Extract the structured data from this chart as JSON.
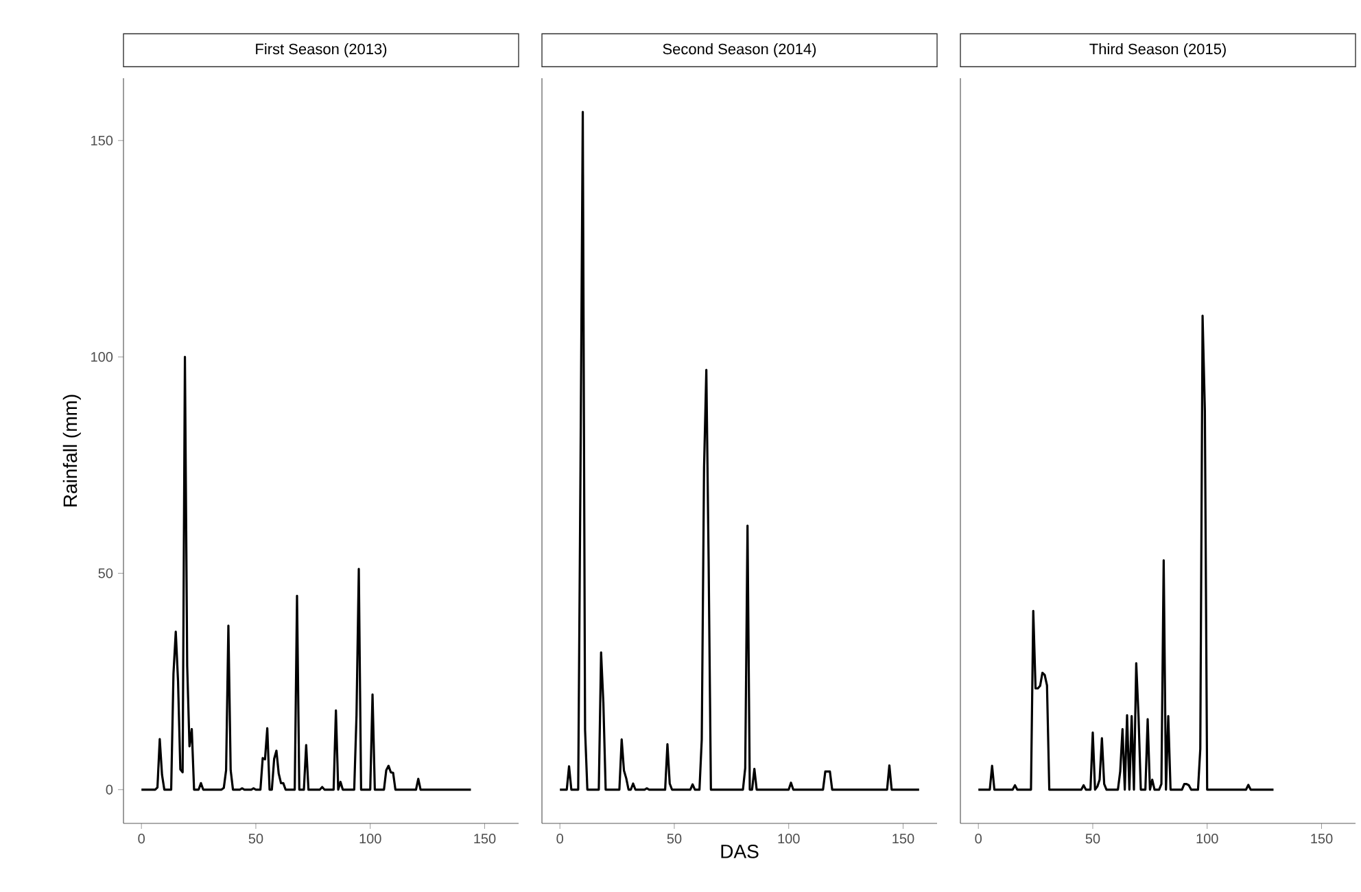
{
  "chart_data": [
    {
      "type": "line",
      "title": "First Season (2013)",
      "ylabel": "Rainfall (mm)",
      "color": "#000000",
      "xlim": [
        -7.85,
        164.85
      ],
      "ylim": [
        -7.8,
        164.4
      ],
      "xticks": [
        0,
        50,
        100,
        150
      ],
      "yticks": [
        0,
        50,
        100,
        150
      ],
      "x": [
        0,
        6,
        7,
        8,
        9,
        10,
        13,
        14,
        15,
        16,
        17,
        18,
        19,
        20,
        21,
        22,
        23,
        25,
        26,
        27,
        35,
        36,
        37,
        38,
        39,
        40,
        43,
        44,
        45,
        48,
        49,
        50,
        52,
        53,
        54,
        55,
        56,
        57,
        58,
        59,
        60,
        61,
        62,
        63,
        67,
        68,
        69,
        71,
        72,
        73,
        78,
        79,
        80,
        84,
        85,
        86,
        87,
        88,
        93,
        94,
        95,
        96,
        100,
        101,
        102,
        106,
        107,
        108,
        109,
        110,
        111,
        120,
        121,
        122,
        144
      ],
      "values": [
        0,
        0,
        0.5,
        11.7,
        3.4,
        0,
        0,
        26.8,
        36.5,
        25,
        4.7,
        4,
        100,
        28.6,
        10,
        14,
        0,
        0,
        1.5,
        0,
        0,
        0.4,
        4.5,
        37.9,
        4.5,
        0,
        0,
        0.3,
        0,
        0,
        0.3,
        0,
        0,
        7.3,
        7,
        14.2,
        0,
        0,
        7.1,
        9,
        3.7,
        1.5,
        1.5,
        0,
        0,
        44.8,
        0,
        0,
        10.3,
        0,
        0,
        0.6,
        0,
        0,
        18.3,
        0,
        1.8,
        0,
        0,
        17.2,
        51,
        0,
        0,
        22,
        0,
        0,
        4.5,
        5.5,
        4,
        3.9,
        0,
        0,
        2.5,
        0,
        0
      ]
    },
    {
      "type": "line",
      "title": "Second Season (2014)",
      "xlabel": "DAS",
      "color": "#000000",
      "xlim": [
        -7.85,
        164.85
      ],
      "ylim": [
        -7.8,
        164.4
      ],
      "xticks": [
        0,
        50,
        100,
        150
      ],
      "tick_labels": "x",
      "x": [
        0,
        3,
        4,
        5,
        8,
        9,
        10,
        11,
        12,
        17,
        18,
        19,
        20,
        26,
        27,
        28,
        29,
        30,
        31,
        32,
        33,
        37,
        38,
        39,
        46,
        47,
        48,
        49,
        57,
        58,
        59,
        61,
        62,
        63,
        64,
        65,
        66,
        80,
        81,
        82,
        83,
        84,
        85,
        86,
        100,
        101,
        102,
        115,
        116,
        117,
        118,
        119,
        143,
        144,
        145,
        157
      ],
      "values": [
        0,
        0,
        5.4,
        0,
        0,
        74,
        156.6,
        13.8,
        0,
        0,
        31.7,
        20,
        0,
        0,
        11.6,
        4.4,
        2.6,
        0,
        0,
        1.4,
        0,
        0,
        0.3,
        0,
        0,
        10.5,
        1.4,
        0,
        0,
        1.2,
        0,
        0,
        11.6,
        74.3,
        97,
        52.9,
        0,
        0,
        5,
        61,
        0,
        0,
        4.8,
        0,
        0,
        1.6,
        0,
        0,
        4.2,
        4.2,
        4.2,
        0,
        0,
        5.6,
        0,
        0
      ]
    },
    {
      "type": "line",
      "title": "Third Season (2015)",
      "color": "#000000",
      "xlim": [
        -7.85,
        164.85
      ],
      "ylim": [
        -7.8,
        164.4
      ],
      "xticks": [
        0,
        50,
        100,
        150
      ],
      "tick_labels": "x",
      "x": [
        0,
        5,
        6,
        7,
        15,
        16,
        17,
        23,
        24,
        25,
        26,
        27,
        28,
        29,
        30,
        31,
        45,
        46,
        47,
        49,
        50,
        51,
        52,
        53,
        54,
        55,
        56,
        61,
        62,
        63,
        64,
        65,
        66,
        67,
        68,
        69,
        70,
        71,
        73,
        74,
        75,
        76,
        77,
        79,
        80,
        81,
        82,
        83,
        84,
        89,
        90,
        91,
        92,
        93,
        96,
        97,
        98,
        99,
        100,
        117,
        118,
        119,
        129
      ],
      "values": [
        0,
        0,
        5.5,
        0,
        0,
        1,
        0,
        0,
        41.3,
        23.4,
        23.4,
        24,
        27,
        26.5,
        24.1,
        0,
        0,
        1,
        0,
        0,
        13.2,
        0,
        0.7,
        2.3,
        11.9,
        1.3,
        0,
        0,
        4.2,
        14,
        0,
        17.2,
        0,
        17,
        0,
        29.2,
        17,
        0,
        0,
        16.3,
        0,
        2.3,
        0,
        0,
        1.3,
        53,
        0,
        17,
        0,
        0,
        1.3,
        1.3,
        1,
        0,
        0,
        9.4,
        109.5,
        87.5,
        0,
        0,
        1.1,
        0,
        0
      ]
    }
  ]
}
